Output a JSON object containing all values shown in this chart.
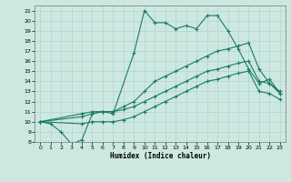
{
  "xlabel": "Humidex (Indice chaleur)",
  "background_color": "#cde8e0",
  "grid_color": "#b0d4cc",
  "line_color": "#1a7a6a",
  "xlim": [
    -0.5,
    23.5
  ],
  "ylim": [
    8,
    21.5
  ],
  "xticks": [
    0,
    1,
    2,
    3,
    4,
    5,
    6,
    7,
    8,
    9,
    10,
    11,
    12,
    13,
    14,
    15,
    16,
    17,
    18,
    19,
    20,
    21,
    22,
    23
  ],
  "yticks": [
    8,
    9,
    10,
    11,
    12,
    13,
    14,
    15,
    16,
    17,
    18,
    19,
    20,
    21
  ],
  "line1_x": [
    0,
    1,
    2,
    3,
    4,
    5,
    6,
    7,
    9,
    10,
    11,
    12,
    13,
    14,
    15,
    16,
    17,
    18,
    19,
    20,
    21,
    22,
    23
  ],
  "line1_y": [
    10,
    9.8,
    9,
    7.8,
    8.2,
    10.8,
    11,
    10.8,
    16.8,
    21.0,
    19.8,
    19.8,
    19.2,
    19.5,
    19.2,
    20.5,
    20.5,
    19,
    17.2,
    15.2,
    13.8,
    14.2,
    12.8
  ],
  "line2_x": [
    0,
    4,
    5,
    6,
    7,
    8,
    9,
    10,
    11,
    12,
    13,
    14,
    15,
    16,
    17,
    18,
    19,
    20,
    21,
    22,
    23
  ],
  "line2_y": [
    10,
    10.8,
    11,
    11,
    11,
    11.5,
    12,
    13,
    14,
    14.5,
    15,
    15.5,
    16,
    16.5,
    17,
    17.2,
    17.5,
    17.8,
    15.2,
    13.8,
    12.8
  ],
  "line3_x": [
    0,
    4,
    5,
    6,
    7,
    8,
    9,
    10,
    11,
    12,
    13,
    14,
    15,
    16,
    17,
    18,
    19,
    20,
    21,
    22,
    23
  ],
  "line3_y": [
    10,
    10.5,
    10.8,
    11,
    11,
    11.2,
    11.5,
    12,
    12.5,
    13,
    13.5,
    14,
    14.5,
    15,
    15.2,
    15.5,
    15.8,
    16,
    14,
    13.8,
    13.0
  ],
  "line4_x": [
    0,
    4,
    5,
    6,
    7,
    8,
    9,
    10,
    11,
    12,
    13,
    14,
    15,
    16,
    17,
    18,
    19,
    20,
    21,
    22,
    23
  ],
  "line4_y": [
    10,
    9.8,
    10,
    10,
    10,
    10.2,
    10.5,
    11,
    11.5,
    12,
    12.5,
    13,
    13.5,
    14,
    14.2,
    14.5,
    14.8,
    15,
    13.0,
    12.8,
    12.2
  ]
}
